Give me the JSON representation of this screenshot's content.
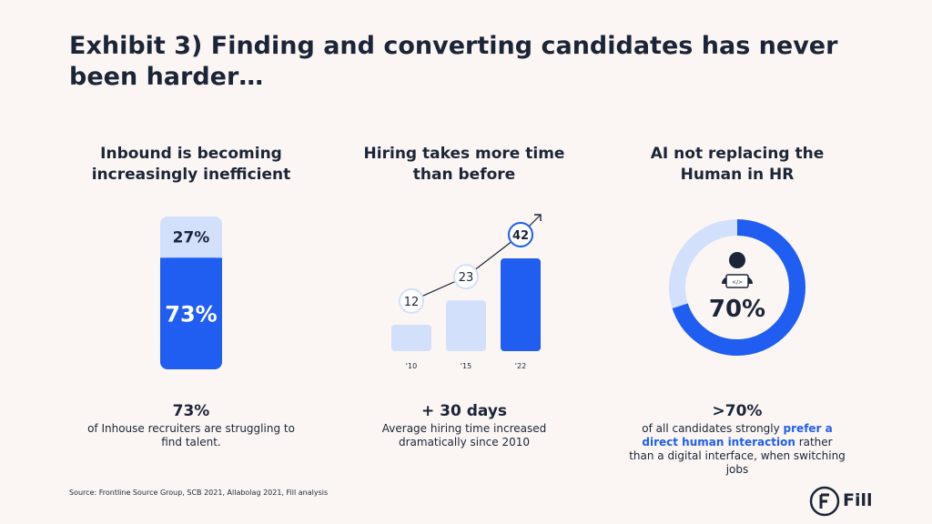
{
  "title": "Exhibit 3) Finding and converting candidates has never been harder…",
  "panel1": {
    "heading": "Inbound is becoming increasingly inefficient",
    "stat": "73%",
    "description": "of Inhouse recruiters are struggling to find talent."
  },
  "panel2": {
    "heading": "Hiring takes more time than before",
    "stat": "+ 30 days",
    "description": "Average hiring time increased dramatically since 2010"
  },
  "panel3": {
    "heading": "AI not replacing the Human in HR",
    "stat": ">70%",
    "description_pre": "of all candidates strongly ",
    "description_highlight": "prefer a direct human interaction",
    "description_post": " rather than a digital interface, when switching jobs",
    "icon": "developer-person-icon"
  },
  "source": "Source: Frontline Source Group, SCB 2021, Allabolag 2021, Fill analysis",
  "logo_text": "Fill",
  "colors": {
    "accent": "#1f5ef0",
    "light": "#d3e0fb",
    "text": "#1c2538",
    "background": "#fbf6f3"
  },
  "chart_data": [
    {
      "type": "bar",
      "chart": "stacked-100",
      "series": [
        {
          "label": "73%",
          "value": 73,
          "color": "#1f5ef0"
        },
        {
          "label": "27%",
          "value": 27,
          "color": "#d3e0fb"
        }
      ]
    },
    {
      "type": "bar",
      "categories": [
        "'10",
        "'15",
        "'22"
      ],
      "values": [
        12,
        23,
        42
      ],
      "value_labels": [
        "12",
        "23",
        "42"
      ],
      "highlight_index": 2,
      "trend_arrow": true
    },
    {
      "type": "pie",
      "chart": "donut",
      "center_label": "70%",
      "series": [
        {
          "value": 70,
          "color": "#1f5ef0"
        },
        {
          "value": 30,
          "color": "#d3e0fb"
        }
      ]
    }
  ]
}
